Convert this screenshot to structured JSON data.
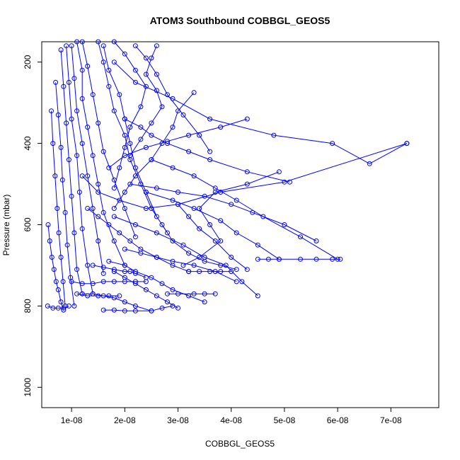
{
  "chart_data": {
    "type": "scatter",
    "title": "ATOM3 Southbound COBBGL_GEOS5",
    "xlabel": "COBBGL_GEOS5",
    "ylabel": "Pressure (mbar)",
    "xlim": [
      4.4e-09,
      7.9e-08
    ],
    "ylim": [
      1050,
      150
    ],
    "y_inverted": true,
    "x_ticks": [
      1e-08,
      2e-08,
      3e-08,
      4e-08,
      5e-08,
      6e-08,
      7e-08
    ],
    "x_tick_labels": [
      "1e-08",
      "2e-08",
      "3e-08",
      "4e-08",
      "5e-08",
      "6e-08",
      "7e-08"
    ],
    "y_ticks": [
      200,
      400,
      600,
      800,
      1000
    ],
    "y_tick_labels": [
      "200",
      "400",
      "600",
      "800",
      "1000"
    ],
    "grid": false,
    "legend": "none",
    "color": "#0000ff",
    "marker": "open-circle",
    "series": [
      {
        "x": [
          7.3e-08,
          6.6e-08,
          5.9e-08,
          4.8e-08,
          3.6e-08,
          2.9e-08,
          2.2e-08,
          1.8e-08
        ],
        "y": [
          400,
          450,
          400,
          380,
          340,
          290,
          250,
          200
        ]
      },
      {
        "x": [
          7.3e-08,
          5e-08,
          3.8e-08,
          3e-08,
          2.4e-08,
          1.9e-08,
          1.5e-08,
          1.2e-08
        ],
        "y": [
          400,
          495,
          520,
          550,
          560,
          540,
          520,
          480
        ]
      },
      {
        "x": [
          5.1e-08,
          4.3e-08,
          3.6e-08,
          3.2e-08,
          2.8e-08,
          2.5e-08,
          2.3e-08,
          2e-08
        ],
        "y": [
          495,
          470,
          440,
          420,
          400,
          380,
          360,
          340
        ]
      },
      {
        "x": [
          4.9e-08,
          4.3e-08,
          3.7e-08,
          3.4e-08,
          3.6e-08,
          3.8e-08,
          3.4e-08,
          3.1e-08
        ],
        "y": [
          470,
          500,
          520,
          560,
          600,
          640,
          680,
          700
        ]
      },
      {
        "x": [
          6e-08,
          5.3e-08,
          4.6e-08,
          4.1e-08,
          3.7e-08,
          3.3e-08,
          2.9e-08,
          2.5e-08
        ],
        "y": [
          685,
          630,
          580,
          540,
          510,
          480,
          460,
          440
        ]
      },
      {
        "x": [
          5.6e-08,
          5e-08,
          4.4e-08,
          4e-08,
          3.5e-08,
          3e-08,
          2.6e-08,
          2.1e-08
        ],
        "y": [
          640,
          600,
          570,
          550,
          530,
          520,
          510,
          500
        ]
      },
      {
        "x": [
          4.9e-08,
          4.5e-08,
          4.1e-08,
          3.8e-08,
          3.3e-08,
          2.9e-08,
          2.4e-08
        ],
        "y": [
          685,
          650,
          620,
          590,
          560,
          540,
          520
        ]
      },
      {
        "x": [
          4.5e-08,
          4.2e-08,
          3.9e-08,
          3.5e-08,
          3.1e-08,
          2.6e-08,
          2.2e-08,
          1.8e-08
        ],
        "y": [
          775,
          740,
          700,
          680,
          650,
          620,
          600,
          580
        ]
      },
      {
        "x": [
          4.1e-08,
          3.7e-08,
          3.3e-08,
          2.9e-08,
          2.6e-08,
          2.3e-08,
          2e-08
        ],
        "y": [
          740,
          715,
          700,
          690,
          680,
          670,
          660
        ]
      },
      {
        "x": [
          3.5e-08,
          3.2e-08,
          2.9e-08,
          2.7e-08,
          2.5e-08,
          2.2e-08,
          2e-08,
          1.7e-08
        ],
        "y": [
          790,
          775,
          760,
          745,
          730,
          715,
          700,
          690
        ]
      },
      {
        "x": [
          3e-08,
          2.8e-08,
          2.6e-08,
          2.4e-08,
          2.2e-08,
          2e-08,
          1.8e-08
        ],
        "y": [
          805,
          790,
          775,
          760,
          745,
          730,
          715
        ]
      },
      {
        "x": [
          2.5e-08,
          2.2e-08,
          2e-08,
          1.8e-08,
          1.6e-08,
          1.4e-08,
          1.2e-08
        ],
        "y": [
          812,
          800,
          790,
          780,
          775,
          770,
          770
        ]
      },
      {
        "x": [
          3.3e-08,
          3e-08,
          2.9e-08,
          2.7e-08,
          2.5e-08,
          2.2e-08,
          2e-08,
          1.8e-08
        ],
        "y": [
          275,
          320,
          360,
          400,
          440,
          480,
          520,
          560
        ]
      },
      {
        "x": [
          4.3e-08,
          3.8e-08,
          3.2e-08,
          2.8e-08,
          2.4e-08,
          2e-08,
          1.7e-08
        ],
        "y": [
          340,
          360,
          380,
          395,
          410,
          430,
          460
        ]
      },
      {
        "x": [
          2.6e-08,
          2.5e-08,
          2.4e-08,
          2.6e-08,
          2.7e-08,
          2.5e-08,
          2.3e-08,
          2.1e-08
        ],
        "y": [
          160,
          190,
          230,
          270,
          310,
          350,
          390,
          430
        ]
      },
      {
        "x": [
          2.2e-08,
          2.4e-08,
          2.6e-08,
          2.8e-08,
          3.1e-08,
          3.4e-08,
          3.6e-08
        ],
        "y": [
          160,
          190,
          230,
          280,
          330,
          380,
          420
        ]
      },
      {
        "x": [
          1.8e-08,
          2e-08,
          2.2e-08,
          2.4e-08,
          2.3e-08,
          2.1e-08,
          2e-08,
          1.9e-08,
          1.8e-08
        ],
        "y": [
          150,
          180,
          220,
          260,
          310,
          360,
          410,
          460,
          510
        ]
      },
      {
        "x": [
          1.6e-08,
          1.7e-08,
          1.9e-08,
          2e-08,
          2.1e-08,
          2.2e-08,
          2.4e-08,
          2.6e-08
        ],
        "y": [
          160,
          220,
          280,
          340,
          400,
          460,
          520,
          580
        ]
      },
      {
        "x": [
          1.5e-08,
          1.6e-08,
          1.7e-08,
          1.8e-08,
          2e-08,
          2.1e-08,
          2.3e-08,
          2.5e-08,
          2.8e-08
        ],
        "y": [
          150,
          200,
          260,
          320,
          380,
          440,
          500,
          560,
          620
        ]
      },
      {
        "x": [
          1.2e-08,
          1.3e-08,
          1.4e-08,
          1.5e-08,
          1.6e-08,
          1.8e-08,
          2e-08,
          2.2e-08
        ],
        "y": [
          150,
          210,
          280,
          350,
          420,
          490,
          560,
          630
        ]
      },
      {
        "x": [
          1.1e-08,
          1.2e-08,
          1.2e-08,
          1.3e-08,
          1.4e-08,
          1.5e-08,
          1.6e-08,
          1.8e-08,
          2e-08
        ],
        "y": [
          150,
          220,
          290,
          360,
          430,
          500,
          570,
          640,
          700
        ]
      },
      {
        "x": [
          1e-08,
          1.05e-08,
          1.1e-08,
          1.2e-08,
          1.3e-08,
          1.4e-08,
          1.5e-08,
          1.6e-08
        ],
        "y": [
          160,
          240,
          320,
          400,
          480,
          560,
          640,
          720
        ]
      },
      {
        "x": [
          9e-09,
          9.5e-09,
          1e-08,
          1.1e-08,
          1.15e-08,
          1.2e-08,
          1.3e-08,
          1.4e-08
        ],
        "y": [
          160,
          250,
          340,
          430,
          520,
          610,
          700,
          770
        ]
      },
      {
        "x": [
          8e-09,
          8.5e-09,
          9e-09,
          9.5e-09,
          1e-08,
          1.05e-08,
          1.1e-08,
          1.2e-08
        ],
        "y": [
          170,
          260,
          350,
          440,
          530,
          620,
          710,
          770
        ]
      },
      {
        "x": [
          7e-09,
          7.5e-09,
          8e-09,
          8.3e-09,
          8.8e-09,
          9.2e-09,
          9.8e-09,
          1.05e-08
        ],
        "y": [
          250,
          330,
          410,
          490,
          570,
          650,
          730,
          800
        ]
      },
      {
        "x": [
          6.2e-09,
          6.5e-09,
          6.9e-09,
          7.3e-09,
          7.6e-09,
          8e-09,
          8.4e-09,
          8.8e-09
        ],
        "y": [
          320,
          400,
          480,
          560,
          620,
          680,
          740,
          800
        ]
      },
      {
        "x": [
          5.6e-09,
          5.9e-09,
          6.3e-09,
          6.7e-09,
          7.1e-09,
          7.5e-09,
          8e-09,
          8.5e-09
        ],
        "y": [
          600,
          640,
          680,
          710,
          740,
          760,
          790,
          810
        ]
      },
      {
        "x": [
          1.3e-08,
          1.5e-08,
          1.7e-08,
          1.9e-08,
          2.1e-08,
          2.3e-08,
          2.6e-08,
          2.9e-08,
          3.2e-08
        ],
        "y": [
          560,
          580,
          600,
          620,
          640,
          660,
          680,
          700,
          715
        ]
      },
      {
        "x": [
          1e-08,
          1.2e-08,
          1.4e-08,
          1.6e-08,
          1.8e-08,
          2e-08,
          2.2e-08,
          2.4e-08
        ],
        "y": [
          740,
          745,
          745,
          740,
          740,
          740,
          740,
          740
        ]
      },
      {
        "x": [
          3.2e-08,
          3.4e-08,
          3.6e-08,
          3.8e-08,
          4e-08
        ],
        "y": [
          715,
          715,
          715,
          715,
          715
        ]
      },
      {
        "x": [
          4.5e-08,
          4.7e-08,
          4.9e-08,
          5.3e-08,
          5.6e-08,
          5.9e-08,
          6.05e-08
        ],
        "y": [
          685,
          685,
          685,
          685,
          685,
          685,
          685
        ]
      },
      {
        "x": [
          2.8e-08,
          3e-08,
          3.3e-08,
          3.5e-08,
          3.7e-08
        ],
        "y": [
          770,
          770,
          770,
          770,
          770
        ]
      },
      {
        "x": [
          1.6e-08,
          1.8e-08,
          2e-08,
          2.2e-08,
          2.5e-08,
          2.7e-08,
          2.9e-08
        ],
        "y": [
          810,
          810,
          812,
          812,
          812,
          805,
          800
        ]
      },
      {
        "x": [
          1.1e-08,
          1.3e-08,
          1.5e-08,
          1.7e-08,
          1.9e-08
        ],
        "y": [
          770,
          775,
          775,
          775,
          775
        ]
      },
      {
        "x": [
          5.5e-09,
          6.5e-09,
          7.5e-09,
          8.5e-09,
          9.5e-09
        ],
        "y": [
          800,
          805,
          805,
          805,
          800
        ]
      },
      {
        "x": [
          1.4e-08,
          1.6e-08,
          1.8e-08,
          2e-08,
          2.1e-08,
          2.2e-08,
          2.4e-08
        ],
        "y": [
          700,
          705,
          710,
          715,
          715,
          720,
          730
        ]
      },
      {
        "x": [
          3e-08,
          3.2e-08,
          3.4e-08,
          3.7e-08,
          4e-08,
          4.3e-08
        ],
        "y": [
          550,
          580,
          610,
          640,
          680,
          710
        ]
      },
      {
        "x": [
          2.7e-08,
          2.9e-08,
          3.2e-08,
          3.5e-08,
          3.8e-08,
          4.1e-08
        ],
        "y": [
          600,
          640,
          670,
          690,
          700,
          710
        ]
      }
    ]
  }
}
